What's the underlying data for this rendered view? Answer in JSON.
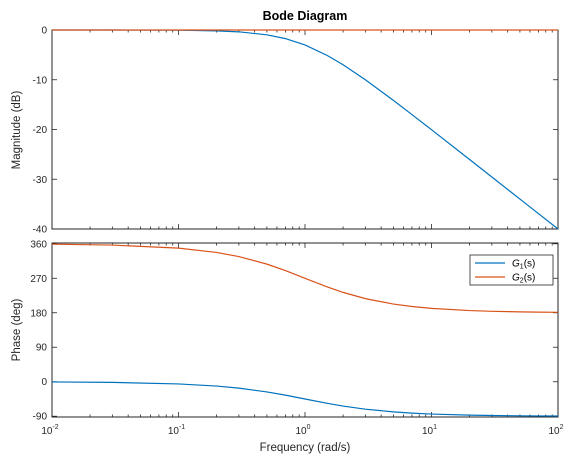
{
  "chart_data": {
    "type": "line",
    "title": "Bode Diagram",
    "xlabel": "Frequency  (rad/s)",
    "x_scale": "log",
    "xlim": [
      0.01,
      100
    ],
    "x_ticks": [
      0.01,
      0.1,
      1,
      10,
      100
    ],
    "x_tick_labels": [
      {
        "base": "10",
        "exp": "-2"
      },
      {
        "base": "10",
        "exp": "-1"
      },
      {
        "base": "10",
        "exp": "0"
      },
      {
        "base": "10",
        "exp": "1"
      },
      {
        "base": "10",
        "exp": "2"
      }
    ],
    "grid": false,
    "panels": [
      {
        "name": "magnitude",
        "ylabel": "Magnitude (dB)",
        "ylim": [
          -40,
          0
        ],
        "y_ticks": [
          0,
          -10,
          -20,
          -30,
          -40
        ],
        "y_tick_labels": [
          "0",
          "-10",
          "-20",
          "-30",
          "-40"
        ],
        "series": [
          {
            "color": "#0072BD",
            "x": [
              0.01,
              0.03,
              0.1,
              0.2,
              0.3,
              0.5,
              0.7,
              1,
              1.5,
              2,
              3,
              5,
              7,
              10,
              20,
              30,
              50,
              70,
              100
            ],
            "y": [
              0,
              -0.004,
              -0.04,
              -0.17,
              -0.37,
              -0.97,
              -1.73,
              -3.01,
              -5.12,
              -6.99,
              -10.0,
              -14.15,
              -17.0,
              -20.04,
              -26.03,
              -29.55,
              -33.98,
              -36.9,
              -40.0
            ]
          },
          {
            "color": "#D95319",
            "x": [
              0.01,
              100
            ],
            "y": [
              0,
              0
            ]
          }
        ]
      },
      {
        "name": "phase",
        "ylabel": "Phase (deg)",
        "ylim": [
          -92,
          362
        ],
        "y_ticks": [
          360,
          270,
          180,
          90,
          0,
          -90
        ],
        "y_tick_labels": [
          "360",
          "270",
          "180",
          "90",
          "0",
          "-90"
        ],
        "legend": {
          "position": "top-right",
          "entries": [
            {
              "base": "G",
              "sub": "1",
              "arg": "(s)",
              "color": "#0072BD"
            },
            {
              "base": "G",
              "sub": "2",
              "arg": "(s)",
              "color": "#D95319"
            }
          ]
        },
        "series": [
          {
            "color": "#0072BD",
            "x": [
              0.01,
              0.03,
              0.1,
              0.2,
              0.3,
              0.5,
              0.7,
              1,
              1.5,
              2,
              3,
              5,
              7,
              10,
              20,
              30,
              50,
              70,
              100
            ],
            "y": [
              -0.57,
              -1.72,
              -5.71,
              -11.31,
              -16.7,
              -26.57,
              -34.99,
              -45.0,
              -56.31,
              -63.43,
              -71.57,
              -78.69,
              -81.87,
              -84.29,
              -87.14,
              -88.09,
              -88.85,
              -89.18,
              -89.43
            ]
          },
          {
            "color": "#D95319",
            "x": [
              0.01,
              0.03,
              0.1,
              0.2,
              0.3,
              0.5,
              0.7,
              1,
              1.5,
              2,
              3,
              5,
              7,
              10,
              20,
              30,
              50,
              70,
              100
            ],
            "y": [
              358.85,
              356.56,
              348.58,
              337.38,
              326.6,
              306.87,
              289.97,
              270.0,
              247.38,
              233.13,
              216.87,
              202.62,
              196.26,
              191.42,
              185.72,
              183.82,
              182.29,
              181.64,
              181.15
            ]
          }
        ]
      }
    ]
  }
}
